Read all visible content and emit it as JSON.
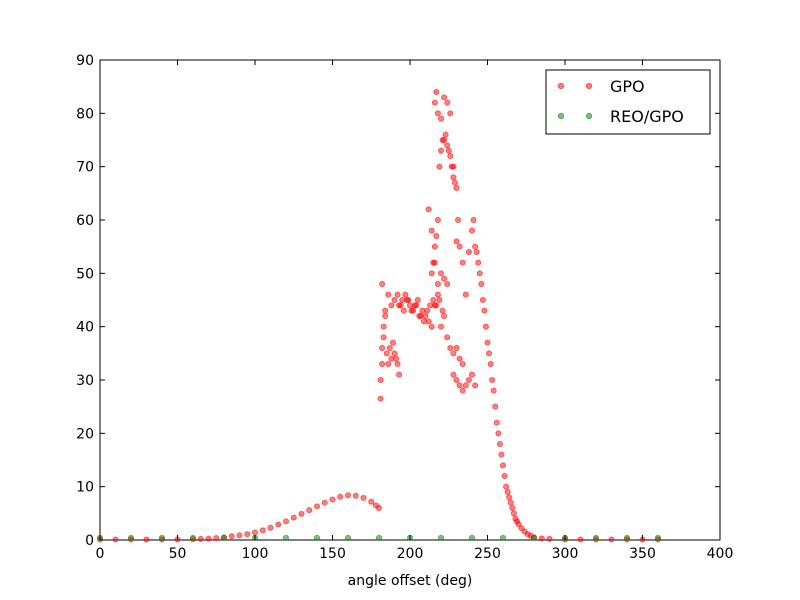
{
  "chart_data": {
    "type": "scatter",
    "title": "",
    "xlabel": "angle offset (deg)",
    "ylabel": "",
    "xlim": [
      0,
      400
    ],
    "ylim": [
      0,
      90
    ],
    "xticks": [
      "0",
      "50",
      "100",
      "150",
      "200",
      "250",
      "300",
      "350",
      "400"
    ],
    "yticks": [
      "0",
      "10",
      "20",
      "30",
      "40",
      "50",
      "60",
      "70",
      "80",
      "90"
    ],
    "grid": false,
    "legend_placement": "top-right",
    "series": [
      {
        "name": "GPO",
        "color": "#ff0000",
        "points": [
          [
            0,
            0.1
          ],
          [
            10,
            0.1
          ],
          [
            20,
            0.1
          ],
          [
            30,
            0.1
          ],
          [
            40,
            0.1
          ],
          [
            50,
            0.1
          ],
          [
            60,
            0.15
          ],
          [
            65,
            0.2
          ],
          [
            70,
            0.25
          ],
          [
            75,
            0.35
          ],
          [
            80,
            0.5
          ],
          [
            85,
            0.7
          ],
          [
            90,
            0.9
          ],
          [
            95,
            1.1
          ],
          [
            100,
            1.4
          ],
          [
            105,
            1.8
          ],
          [
            110,
            2.3
          ],
          [
            115,
            2.9
          ],
          [
            120,
            3.5
          ],
          [
            125,
            4.2
          ],
          [
            130,
            4.9
          ],
          [
            135,
            5.6
          ],
          [
            140,
            6.3
          ],
          [
            145,
            7.0
          ],
          [
            150,
            7.6
          ],
          [
            155,
            8.1
          ],
          [
            160,
            8.4
          ],
          [
            165,
            8.3
          ],
          [
            170,
            7.9
          ],
          [
            175,
            7.2
          ],
          [
            178,
            6.5
          ],
          [
            180,
            6.0
          ],
          [
            181,
            26.5
          ],
          [
            181,
            30
          ],
          [
            182,
            33
          ],
          [
            182,
            36
          ],
          [
            183,
            38
          ],
          [
            183,
            40
          ],
          [
            184,
            42
          ],
          [
            184,
            43
          ],
          [
            185,
            35
          ],
          [
            186,
            33
          ],
          [
            187,
            36
          ],
          [
            188,
            34
          ],
          [
            189,
            37
          ],
          [
            190,
            35
          ],
          [
            191,
            34
          ],
          [
            192,
            33
          ],
          [
            193,
            31
          ],
          [
            182,
            48
          ],
          [
            186,
            46
          ],
          [
            188,
            44
          ],
          [
            190,
            45
          ],
          [
            192,
            46
          ],
          [
            194,
            44
          ],
          [
            196,
            43
          ],
          [
            198,
            45
          ],
          [
            200,
            44
          ],
          [
            202,
            43
          ],
          [
            204,
            44
          ],
          [
            206,
            42
          ],
          [
            208,
            43
          ],
          [
            210,
            42
          ],
          [
            212,
            41
          ],
          [
            214,
            40
          ],
          [
            216,
            44
          ],
          [
            218,
            46
          ],
          [
            220,
            40
          ],
          [
            222,
            42
          ],
          [
            224,
            38
          ],
          [
            226,
            36
          ],
          [
            228,
            35
          ],
          [
            230,
            36
          ],
          [
            232,
            34
          ],
          [
            234,
            33
          ],
          [
            193,
            44
          ],
          [
            195,
            45
          ],
          [
            197,
            46
          ],
          [
            199,
            45
          ],
          [
            201,
            43
          ],
          [
            203,
            44
          ],
          [
            205,
            45
          ],
          [
            207,
            42
          ],
          [
            209,
            41
          ],
          [
            211,
            43
          ],
          [
            213,
            44
          ],
          [
            215,
            45
          ],
          [
            217,
            44
          ],
          [
            219,
            45
          ],
          [
            221,
            43
          ],
          [
            214,
            50
          ],
          [
            215,
            52
          ],
          [
            216,
            55
          ],
          [
            217,
            57
          ],
          [
            218,
            60
          ],
          [
            219,
            70
          ],
          [
            220,
            73
          ],
          [
            221,
            75
          ],
          [
            222,
            75
          ],
          [
            223,
            76
          ],
          [
            224,
            74
          ],
          [
            225,
            73
          ],
          [
            226,
            72
          ],
          [
            227,
            70
          ],
          [
            228,
            68
          ],
          [
            229,
            67
          ],
          [
            230,
            66
          ],
          [
            231,
            60
          ],
          [
            216,
            82
          ],
          [
            217,
            84
          ],
          [
            218,
            80
          ],
          [
            220,
            79
          ],
          [
            222,
            83
          ],
          [
            224,
            82
          ],
          [
            226,
            80
          ],
          [
            228,
            70
          ],
          [
            232,
            55
          ],
          [
            212,
            62
          ],
          [
            214,
            58
          ],
          [
            216,
            52
          ],
          [
            218,
            48
          ],
          [
            220,
            50
          ],
          [
            222,
            49
          ],
          [
            224,
            48
          ],
          [
            230,
            56
          ],
          [
            234,
            52
          ],
          [
            228,
            31
          ],
          [
            230,
            30
          ],
          [
            232,
            29
          ],
          [
            234,
            28
          ],
          [
            236,
            29
          ],
          [
            238,
            30
          ],
          [
            240,
            31
          ],
          [
            242,
            29
          ],
          [
            236,
            46
          ],
          [
            238,
            54
          ],
          [
            240,
            58
          ],
          [
            241,
            60
          ],
          [
            242,
            55
          ],
          [
            243,
            54
          ],
          [
            244,
            52
          ],
          [
            245,
            50
          ],
          [
            246,
            48
          ],
          [
            247,
            45
          ],
          [
            248,
            43
          ],
          [
            249,
            40
          ],
          [
            250,
            37
          ],
          [
            251,
            35
          ],
          [
            252,
            33
          ],
          [
            253,
            30
          ],
          [
            254,
            28
          ],
          [
            255,
            25
          ],
          [
            256,
            22
          ],
          [
            257,
            20
          ],
          [
            258,
            18
          ],
          [
            259,
            16
          ],
          [
            260,
            14
          ],
          [
            261,
            12
          ],
          [
            262,
            10
          ],
          [
            263,
            9
          ],
          [
            264,
            8
          ],
          [
            265,
            7
          ],
          [
            266,
            6
          ],
          [
            267,
            5
          ],
          [
            268,
            4
          ],
          [
            269,
            3.5
          ],
          [
            270,
            3
          ],
          [
            272,
            2.2
          ],
          [
            274,
            1.6
          ],
          [
            276,
            1.1
          ],
          [
            278,
            0.8
          ],
          [
            280,
            0.5
          ],
          [
            285,
            0.3
          ],
          [
            290,
            0.2
          ],
          [
            300,
            0.1
          ],
          [
            310,
            0.1
          ],
          [
            320,
            0.1
          ],
          [
            330,
            0.1
          ],
          [
            340,
            0.1
          ],
          [
            350,
            0.1
          ],
          [
            360,
            0.1
          ]
        ]
      },
      {
        "name": "REO/GPO",
        "color": "#008000",
        "points": [
          [
            0,
            0.4
          ],
          [
            20,
            0.4
          ],
          [
            40,
            0.4
          ],
          [
            60,
            0.4
          ],
          [
            80,
            0.4
          ],
          [
            100,
            0.4
          ],
          [
            120,
            0.4
          ],
          [
            140,
            0.4
          ],
          [
            160,
            0.4
          ],
          [
            180,
            0.4
          ],
          [
            200,
            0.4
          ],
          [
            220,
            0.4
          ],
          [
            240,
            0.4
          ],
          [
            260,
            0.4
          ],
          [
            280,
            0.4
          ],
          [
            300,
            0.4
          ],
          [
            320,
            0.4
          ],
          [
            340,
            0.4
          ],
          [
            360,
            0.4
          ]
        ]
      }
    ]
  }
}
